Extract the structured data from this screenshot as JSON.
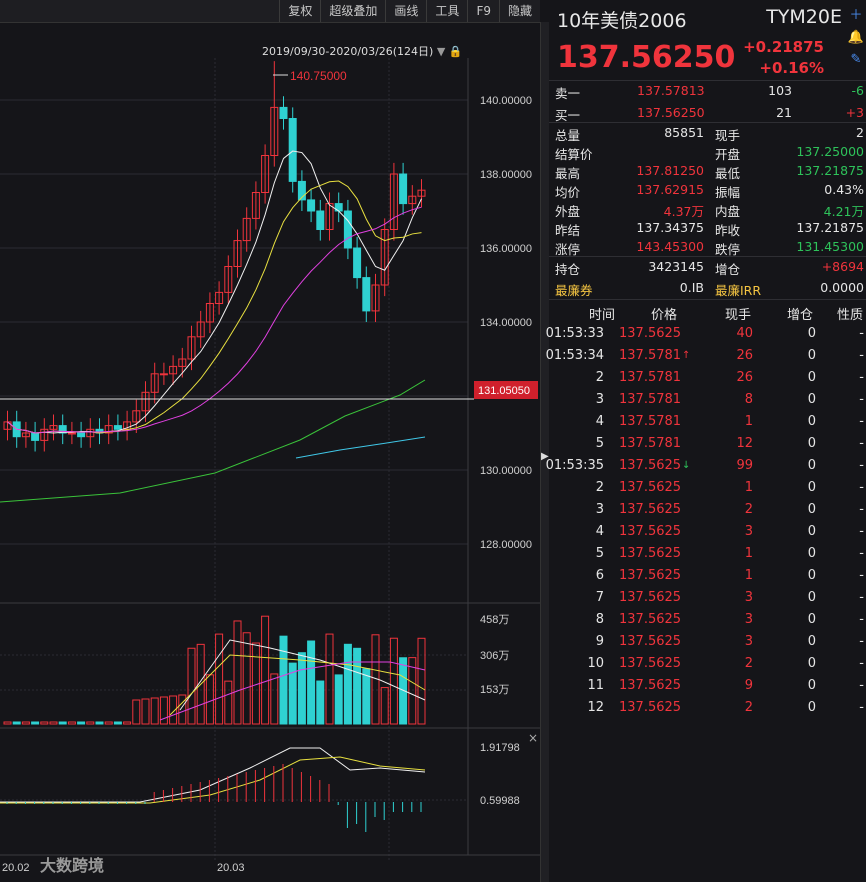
{
  "toolbar": {
    "items": [
      "复权",
      "超级叠加",
      "画线",
      "工具",
      "F9",
      "隐藏"
    ]
  },
  "chart": {
    "range_label": "2019/09/30-2020/03/26(124日)",
    "peak_label": "140.75000",
    "price_axis": [
      "140.00000",
      "138.00000",
      "136.00000",
      "134.00000",
      "130.00000",
      "128.00000"
    ],
    "current_marker": "131.05050",
    "vol_axis": [
      "458万",
      "306万",
      "153万"
    ],
    "ind_axis": [
      "1.91798",
      "0.59988"
    ],
    "date_labels": [
      "20.02",
      "20.03"
    ],
    "watermark": "大数跨境"
  },
  "chart_data": {
    "type": "candlestick",
    "x_range": [
      "2019/09/30",
      "2020/03/26"
    ],
    "days": 124,
    "price_ylim": [
      126.9,
      141.5
    ],
    "high_mark": 140.75,
    "last": 137.5625
  },
  "quote": {
    "name": "10年美债2006",
    "code": "TYM20E",
    "price": "137.56250",
    "change": "+0.21875",
    "change_pct": "+0.16%",
    "ask": {
      "label": "卖一",
      "price": "137.57813",
      "vol": "103",
      "chg": "-6"
    },
    "bid": {
      "label": "买一",
      "price": "137.56250",
      "vol": "21",
      "chg": "+3"
    },
    "stats": [
      [
        "总量",
        "85851",
        "现手",
        "2"
      ],
      [
        "结算价",
        "",
        "开盘",
        "137.25000"
      ],
      [
        "最高",
        "137.81250",
        "最低",
        "137.21875"
      ],
      [
        "均价",
        "137.62915",
        "振幅",
        "0.43%"
      ],
      [
        "外盘",
        "4.37万",
        "内盘",
        "4.21万"
      ],
      [
        "昨结",
        "137.34375",
        "昨收",
        "137.21875"
      ],
      [
        "涨停",
        "143.45300",
        "跌停",
        "131.45300"
      ]
    ],
    "hold": {
      "l1": "持仓",
      "v1": "3423145",
      "l2": "增仓",
      "v2": "+8694"
    },
    "cheap": {
      "l1": "最廉券",
      "v1": "0.IB",
      "l2": "最廉IRR",
      "v2": "0.0000"
    }
  },
  "ticks": {
    "headers": [
      "时间",
      "价格",
      "现手",
      "增仓",
      "性质"
    ],
    "rows": [
      [
        "01:53:33",
        "137.5625",
        "",
        "40",
        "0",
        "-"
      ],
      [
        "01:53:34",
        "137.5781",
        "↑",
        "26",
        "0",
        "-"
      ],
      [
        "2",
        "137.5781",
        "",
        "26",
        "0",
        "-"
      ],
      [
        "3",
        "137.5781",
        "",
        "8",
        "0",
        "-"
      ],
      [
        "4",
        "137.5781",
        "",
        "1",
        "0",
        "-"
      ],
      [
        "5",
        "137.5781",
        "",
        "12",
        "0",
        "-"
      ],
      [
        "01:53:35",
        "137.5625",
        "↓",
        "99",
        "0",
        "-"
      ],
      [
        "2",
        "137.5625",
        "",
        "1",
        "0",
        "-"
      ],
      [
        "3",
        "137.5625",
        "",
        "2",
        "0",
        "-"
      ],
      [
        "4",
        "137.5625",
        "",
        "3",
        "0",
        "-"
      ],
      [
        "5",
        "137.5625",
        "",
        "1",
        "0",
        "-"
      ],
      [
        "6",
        "137.5625",
        "",
        "1",
        "0",
        "-"
      ],
      [
        "7",
        "137.5625",
        "",
        "3",
        "0",
        "-"
      ],
      [
        "8",
        "137.5625",
        "",
        "3",
        "0",
        "-"
      ],
      [
        "9",
        "137.5625",
        "",
        "3",
        "0",
        "-"
      ],
      [
        "10",
        "137.5625",
        "",
        "2",
        "0",
        "-"
      ],
      [
        "11",
        "137.5625",
        "",
        "9",
        "0",
        "-"
      ],
      [
        "12",
        "137.5625",
        "",
        "2",
        "0",
        "-"
      ]
    ]
  },
  "colors": {
    "up": "#f0343c",
    "down": "#2ec25a",
    "candle_down": "#2fd1d1",
    "background": "#151519"
  }
}
